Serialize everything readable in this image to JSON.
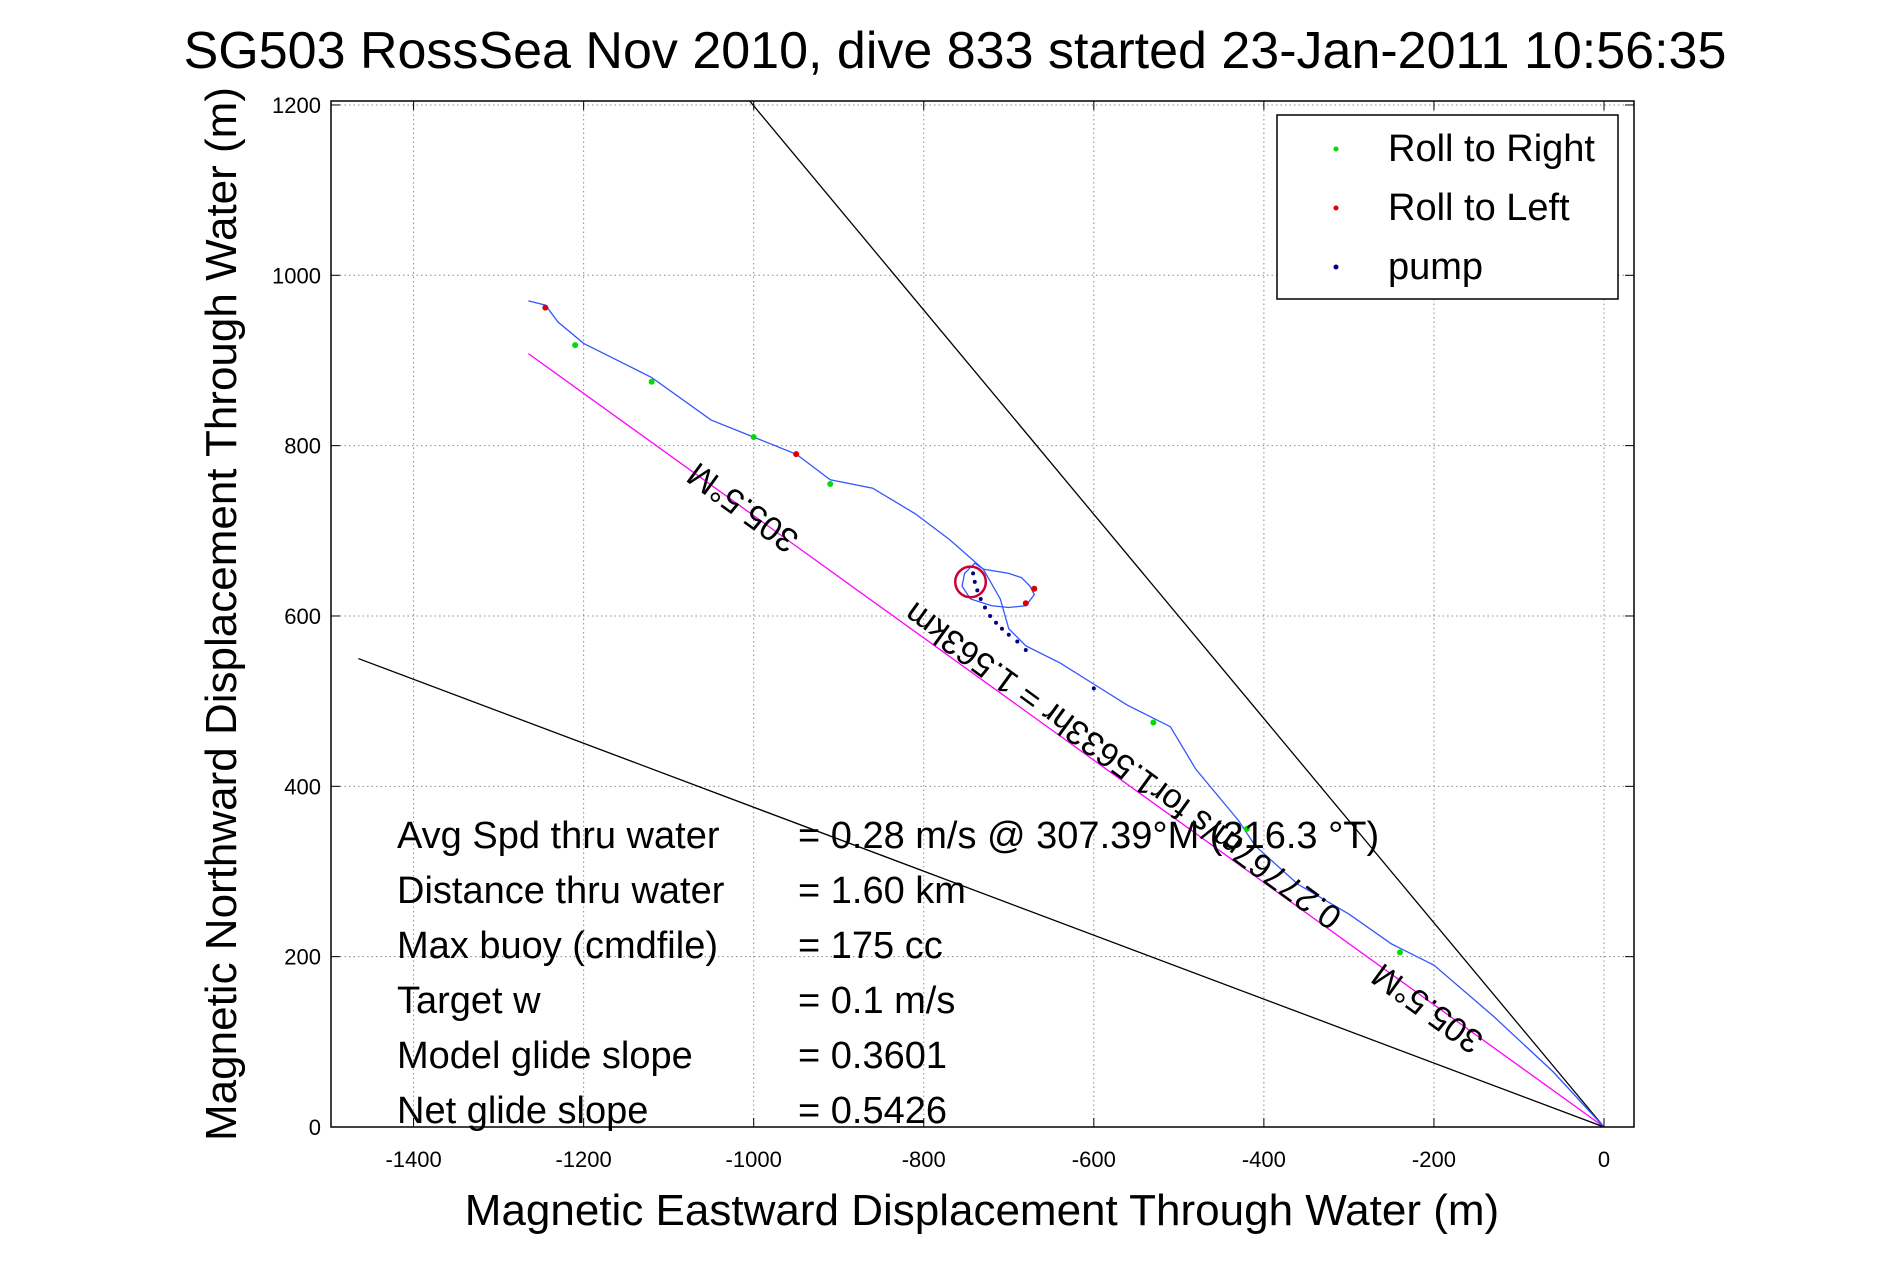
{
  "chart_data": {
    "type": "scatter",
    "title": "SG503 RossSea Nov 2010, dive 833 started 23-Jan-2011 10:56:35",
    "xlabel": "Magnetic Eastward Displacement Through Water (m)",
    "ylabel": "Magnetic Northward Displacement Through Water (m)",
    "xlim": [
      -1500,
      30
    ],
    "ylim": [
      0,
      1200
    ],
    "xticks": [
      -1400,
      -1200,
      -1000,
      -800,
      -600,
      -400,
      -200,
      0
    ],
    "yticks": [
      0,
      200,
      400,
      600,
      800,
      1000,
      1200
    ],
    "xtick_labels": [
      "-1400",
      "-1200",
      "-1000",
      "-800",
      "-600",
      "-400",
      "-200",
      "0"
    ],
    "ytick_labels": [
      "0",
      "200",
      "400",
      "600",
      "800",
      "1000",
      "1200"
    ],
    "grid": true,
    "legend_position": "top-right",
    "legend": [
      {
        "label": "Roll to Right",
        "color": "#00dd00"
      },
      {
        "label": "Roll to Left",
        "color": "#dd0000"
      },
      {
        "label": "pump",
        "color": "#000080"
      }
    ],
    "track": {
      "color": "#3355ff",
      "x": [
        0,
        -60,
        -130,
        -200,
        -250,
        -300,
        -360,
        -410,
        -430,
        -480,
        -510,
        -540,
        -560,
        -600,
        -640,
        -680,
        -700,
        -710,
        -730,
        -770,
        -810,
        -860,
        -910,
        -950,
        -1000,
        -1050,
        -1120,
        -1150,
        -1200,
        -1230,
        -1245,
        -1265
      ],
      "y": [
        0,
        65,
        130,
        190,
        215,
        250,
        285,
        330,
        360,
        420,
        470,
        485,
        495,
        520,
        545,
        565,
        585,
        620,
        655,
        690,
        720,
        750,
        760,
        790,
        810,
        830,
        880,
        895,
        920,
        945,
        965,
        970
      ]
    },
    "loop": {
      "color": "#3355ff",
      "x": [
        -730,
        -700,
        -685,
        -675,
        -670,
        -680,
        -700,
        -720,
        -745,
        -755,
        -752,
        -740,
        -730
      ],
      "y": [
        655,
        650,
        645,
        635,
        625,
        612,
        610,
        612,
        620,
        635,
        650,
        662,
        655
      ]
    },
    "circle": {
      "x": -745,
      "y": 640,
      "r": 18,
      "color": "#cc0033"
    },
    "pump_points": {
      "x": [
        -600,
        -680,
        -690,
        -700,
        -708,
        -715,
        -722,
        -728,
        -733,
        -737,
        -740,
        -742
      ],
      "y": [
        515,
        560,
        570,
        578,
        585,
        592,
        600,
        610,
        620,
        630,
        640,
        650
      ]
    },
    "roll_right_points": {
      "x": [
        -240,
        -420,
        -530,
        -1000,
        -910,
        -1120,
        -1210
      ],
      "y": [
        205,
        350,
        475,
        810,
        755,
        875,
        918
      ]
    },
    "roll_left_points": {
      "x": [
        -670,
        -680,
        -950,
        -1245
      ],
      "y": [
        632,
        615,
        790,
        962
      ]
    },
    "reference_lines": [
      {
        "color": "#ff00ff",
        "x": [
          0,
          -1265
        ],
        "y": [
          0,
          908
        ]
      },
      {
        "color": "#000000",
        "x": [
          0,
          -1005
        ],
        "y": [
          0,
          1205
        ]
      },
      {
        "color": "#000000",
        "x": [
          0,
          -1465
        ],
        "y": [
          0,
          550
        ]
      }
    ],
    "rotated_labels": [
      {
        "text": "305.5°M",
        "x": -1005,
        "y": 738,
        "angle": -144
      },
      {
        "text": "0.27767m/s for1.5633hr = 1.563km",
        "x": -558,
        "y": 435,
        "angle": -144
      },
      {
        "text": "305.5°M",
        "x": -200,
        "y": 150,
        "angle": -144
      }
    ]
  },
  "stats": [
    {
      "label": "Avg Spd thru water",
      "value": "=  0.28 m/s @ 307.39°M (316.3 °T)"
    },
    {
      "label": "Distance thru water",
      "value": "=  1.60 km"
    },
    {
      "label": "Max buoy (cmdfile)",
      "value": "= 175 cc"
    },
    {
      "label": "Target w",
      "value": "= 0.1 m/s"
    },
    {
      "label": "Model glide slope",
      "value": "= 0.3601"
    },
    {
      "label": "Net glide slope",
      "value": "= 0.5426"
    }
  ]
}
